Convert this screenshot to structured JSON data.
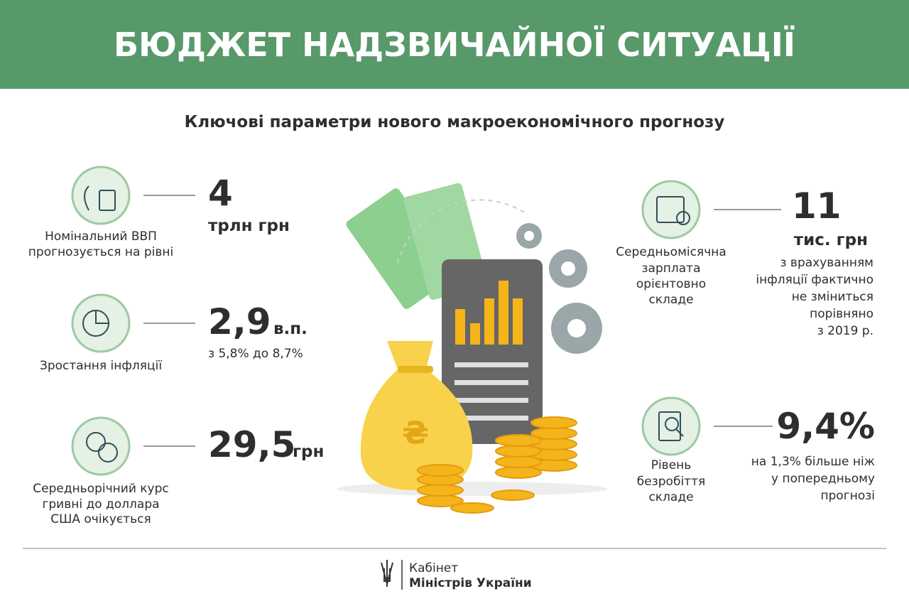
{
  "header": {
    "title": "БЮДЖЕТ НАДЗВИЧАЙНОЇ СИТУАЦІЇ"
  },
  "subtitle": "Ключові параметри нового макроекономічного прогнозу",
  "left_items": [
    {
      "label_lines": [
        "Номінальний ВВП",
        "прогнозується на рівні"
      ],
      "value": "4",
      "unit": "трлн грн"
    },
    {
      "label_lines": [
        "Зростання інфляції"
      ],
      "value": "2,9",
      "unit": "в.п.",
      "note_lines": [
        "з 5,8% до 8,7%"
      ]
    },
    {
      "label_lines": [
        "Середньорічний курс",
        "гривні до доллара",
        "США очікується"
      ],
      "value": "29,5",
      "unit": "грн"
    }
  ],
  "right_items": [
    {
      "label_lines": [
        "Середньомісячна",
        "зарплата",
        "орієнтовно",
        "складе"
      ],
      "value": "11",
      "unit": "тис. грн",
      "note_lines": [
        "з врахуванням",
        "інфляції фактично",
        "не зміниться",
        "порівняно",
        "з 2019 р."
      ]
    },
    {
      "label_lines": [
        "Рівень",
        "безробіття",
        "складе"
      ],
      "value": "9,4%",
      "note_lines": [
        "на 1,3% більше ніж",
        "у попередньому",
        "прогнозі"
      ]
    }
  ],
  "footer": {
    "line1": "Кабінет",
    "line2": "Міністрів України"
  }
}
